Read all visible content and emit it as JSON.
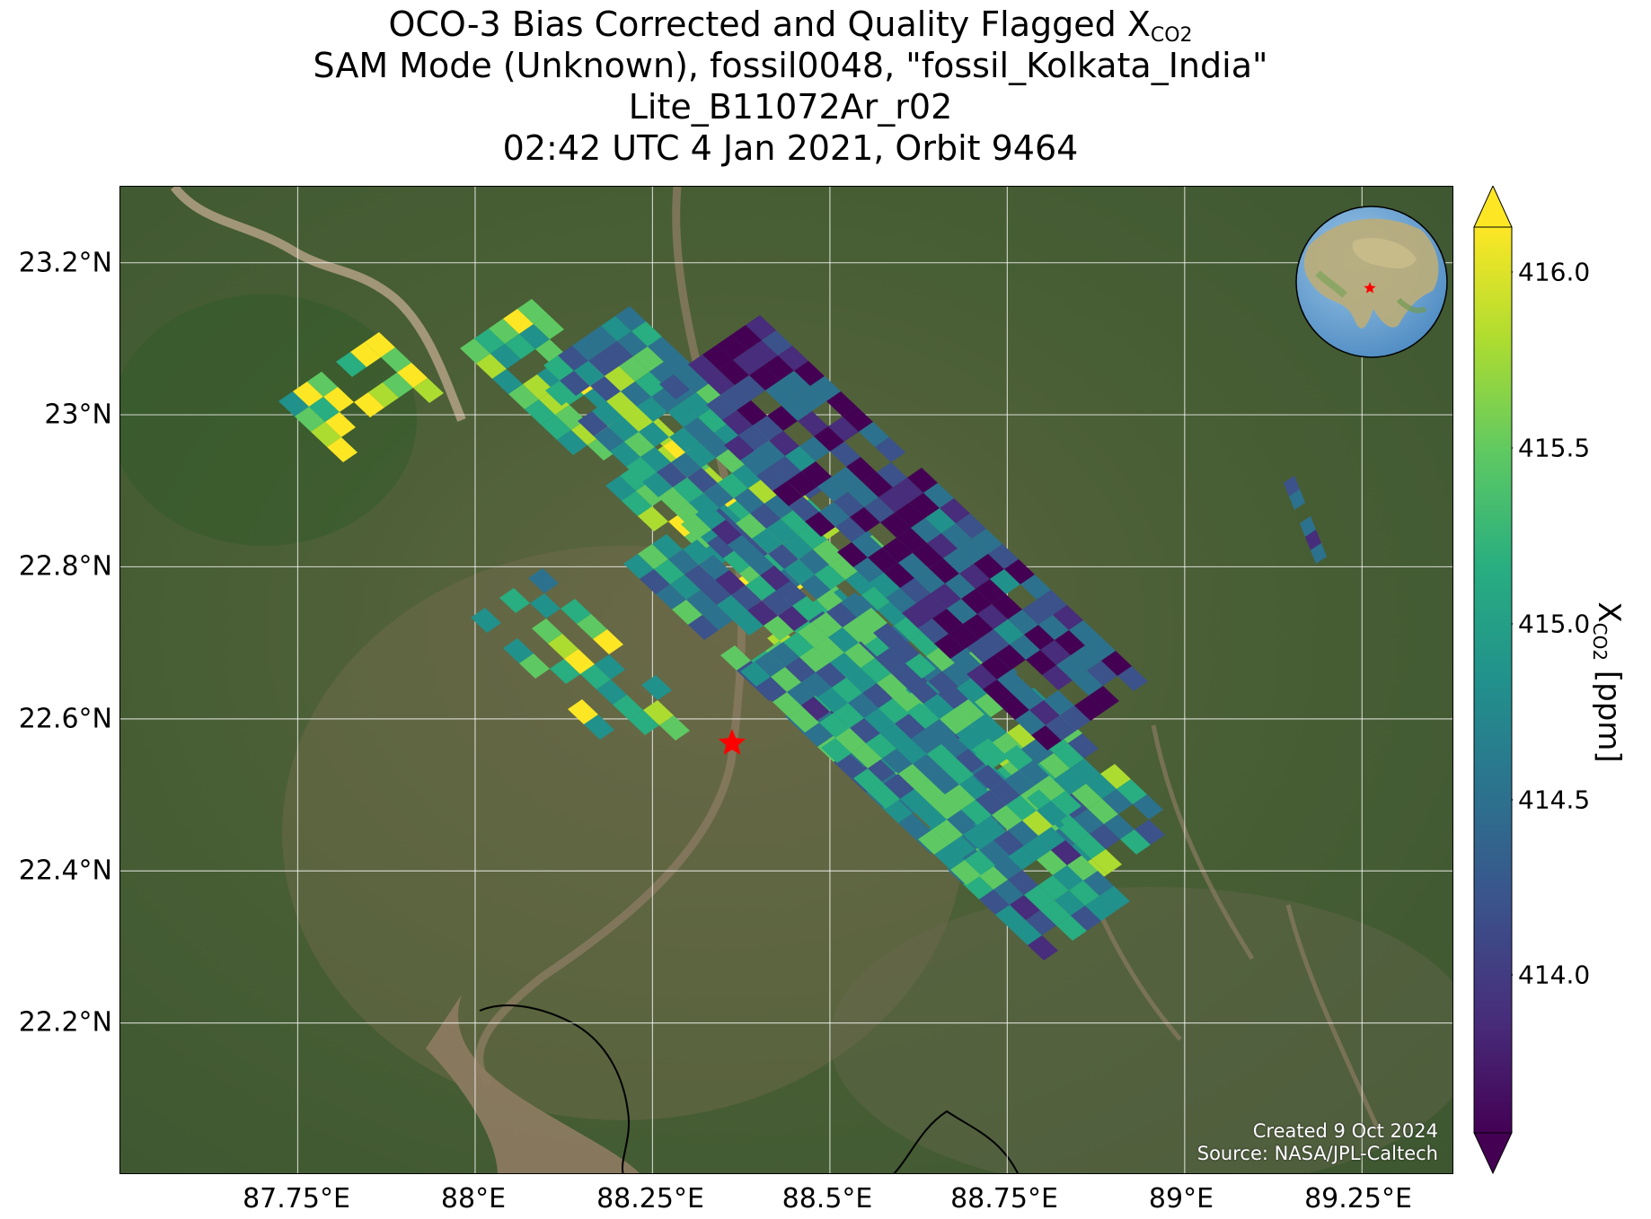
{
  "title": {
    "line1_prefix": "OCO-3 Bias Corrected and Quality Flagged X",
    "line1_sub": "CO2",
    "line2": "SAM Mode (Unknown), fossil0048, \"fossil_Kolkata_India\"",
    "line3": "Lite_B11072Ar_r02",
    "line4": "02:42 UTC 4 Jan 2021, Orbit 9464"
  },
  "map": {
    "lon_range": [
      87.5,
      89.38
    ],
    "lat_range": [
      22.0,
      23.3
    ],
    "target_marker": {
      "lon": 88.36,
      "lat": 22.57,
      "shape": "red-star"
    },
    "inset_globe": {
      "center_region": "Asia",
      "marker": "red-star"
    },
    "grid": true,
    "background": "satellite imagery"
  },
  "axes": {
    "lat_ticks": [
      {
        "value": 23.2,
        "label": "23.2°N"
      },
      {
        "value": 23.0,
        "label": "23°N"
      },
      {
        "value": 22.8,
        "label": "22.8°N"
      },
      {
        "value": 22.6,
        "label": "22.6°N"
      },
      {
        "value": 22.4,
        "label": "22.4°N"
      },
      {
        "value": 22.2,
        "label": "22.2°N"
      }
    ],
    "lon_ticks": [
      {
        "value": 87.75,
        "label": "87.75°E"
      },
      {
        "value": 88.0,
        "label": "88°E"
      },
      {
        "value": 88.25,
        "label": "88.25°E"
      },
      {
        "value": 88.5,
        "label": "88.5°E"
      },
      {
        "value": 88.75,
        "label": "88.75°E"
      },
      {
        "value": 89.0,
        "label": "89°E"
      },
      {
        "value": 89.25,
        "label": "89.25°E"
      }
    ]
  },
  "colorbar": {
    "label_prefix": "X",
    "label_sub": "CO2",
    "label_suffix": " [ppm]",
    "min": 413.6,
    "max": 416.15,
    "extend": "both",
    "colormap": "viridis",
    "ticks": [
      {
        "value": 416.0,
        "label": "416.0"
      },
      {
        "value": 415.5,
        "label": "415.5"
      },
      {
        "value": 415.0,
        "label": "415.0"
      },
      {
        "value": 414.5,
        "label": "414.5"
      },
      {
        "value": 414.0,
        "label": "414.0"
      }
    ]
  },
  "credits": {
    "created": "Created 9 Oct 2024",
    "source": "Source: NASA/JPL-Caltech"
  },
  "colors": {
    "viridis": [
      "#440154",
      "#472d7b",
      "#3b528b",
      "#2c728e",
      "#21918c",
      "#28ae80",
      "#5ec962",
      "#addc30",
      "#fde725"
    ],
    "land": "#3f5a2e",
    "river": "#8a7a62",
    "star": "#ff0000"
  }
}
